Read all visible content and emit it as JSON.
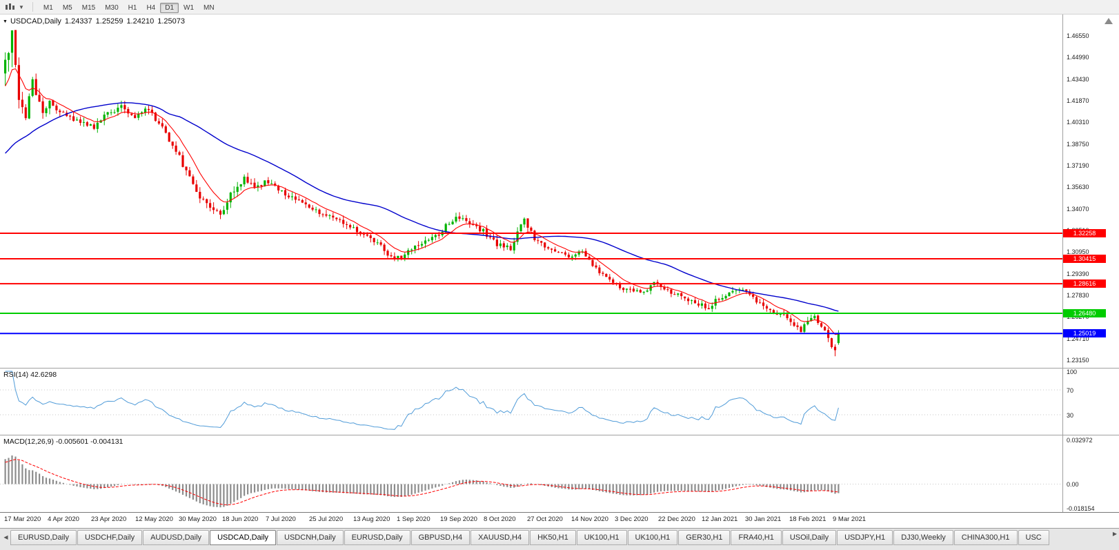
{
  "toolbar": {
    "timeframes": [
      {
        "label": "M1",
        "active": false
      },
      {
        "label": "M5",
        "active": false
      },
      {
        "label": "M15",
        "active": false
      },
      {
        "label": "M30",
        "active": false
      },
      {
        "label": "H1",
        "active": false
      },
      {
        "label": "H4",
        "active": false
      },
      {
        "label": "D1",
        "active": true
      },
      {
        "label": "W1",
        "active": false
      },
      {
        "label": "MN",
        "active": false
      }
    ]
  },
  "chart": {
    "marker": "▼",
    "symbol_label": "USDCAD,Daily",
    "ohlc": {
      "open": "1.24337",
      "high": "1.25259",
      "low": "1.24210",
      "close": "1.25073"
    }
  },
  "rsi": {
    "label": "RSI(14)",
    "value": "42.6298",
    "levels": [
      "100",
      "70",
      "30"
    ]
  },
  "macd": {
    "label": "MACD(12,26,9)",
    "value_macd": "-0.005601",
    "value_signal": "-0.004131",
    "axis": [
      "0.032972",
      "0.00",
      "-0.018154"
    ]
  },
  "tabs": {
    "scroll_left": "◀",
    "scroll_right": "▶",
    "items": [
      {
        "label": "EURUSD,Daily",
        "active": false
      },
      {
        "label": "USDCHF,Daily",
        "active": false
      },
      {
        "label": "AUDUSD,Daily",
        "active": false
      },
      {
        "label": "USDCAD,Daily",
        "active": true
      },
      {
        "label": "USDCNH,Daily",
        "active": false
      },
      {
        "label": "EURUSD,Daily",
        "active": false
      },
      {
        "label": "GBPUSD,H4",
        "active": false
      },
      {
        "label": "XAUUSD,H4",
        "active": false
      },
      {
        "label": "HK50,H1",
        "active": false
      },
      {
        "label": "UK100,H1",
        "active": false
      },
      {
        "label": "UK100,H1",
        "active": false
      },
      {
        "label": "GER30,H1",
        "active": false
      },
      {
        "label": "FRA40,H1",
        "active": false
      },
      {
        "label": "USOil,Daily",
        "active": false
      },
      {
        "label": "USDJPY,H1",
        "active": false
      },
      {
        "label": "DJ30,Weekly",
        "active": false
      },
      {
        "label": "CHINA300,H1",
        "active": false
      },
      {
        "label": "USC",
        "active": false
      }
    ]
  },
  "colors": {
    "up": "#00b300",
    "down": "#e80000",
    "ma_fast": "#ff0000",
    "ma_slow": "#0000cc",
    "rsi_line": "#4f9bd8",
    "macd_hist": "#8c8c8c",
    "macd_signal": "#ff0000",
    "grid_dotted": "#c6c6c6"
  },
  "chart_data": {
    "type": "candlestick",
    "symbol": "USDCAD",
    "timeframe": "Daily",
    "bars": 245,
    "y_axis_ticks": [
      "1.46550",
      "1.44990",
      "1.43430",
      "1.41870",
      "1.40310",
      "1.38750",
      "1.37190",
      "1.35630",
      "1.34070",
      "1.32510",
      "1.30950",
      "1.29390",
      "1.27830",
      "1.26270",
      "1.24710",
      "1.23150"
    ],
    "x_axis_dates": [
      "17 Mar 2020",
      "4 Apr 2020",
      "23 Apr 2020",
      "12 May 2020",
      "30 May 2020",
      "18 Jun 2020",
      "7 Jul 2020",
      "25 Jul 2020",
      "13 Aug 2020",
      "1 Sep 2020",
      "19 Sep 2020",
      "8 Oct 2020",
      "27 Oct 2020",
      "14 Nov 2020",
      "3 Dec 2020",
      "22 Dec 2020",
      "12 Jan 2021",
      "30 Jan 2021",
      "18 Feb 2021",
      "9 Mar 2021"
    ],
    "horizontal_lines": [
      {
        "price": 1.32258,
        "label": "1.32258",
        "color": "#ff0000"
      },
      {
        "price": 1.30415,
        "label": "1.30415",
        "color": "#ff0000"
      },
      {
        "price": 1.28616,
        "label": "1.28616",
        "color": "#ff0000"
      },
      {
        "price": 1.2648,
        "label": "1.26480",
        "color": "#00cc00"
      },
      {
        "price": 1.25019,
        "label": "1.25019",
        "color": "#0000ff"
      }
    ],
    "last_candle": {
      "open": 1.24337,
      "high": 1.25259,
      "low": 1.2421,
      "close": 1.25073
    },
    "price_range_estimate": {
      "high": 1.4655,
      "low": 1.233
    },
    "price_anchors": [
      [
        0,
        1.442
      ],
      [
        2,
        1.463
      ],
      [
        4,
        1.419
      ],
      [
        6,
        1.406
      ],
      [
        8,
        1.433
      ],
      [
        11,
        1.409
      ],
      [
        13,
        1.417
      ],
      [
        17,
        1.408
      ],
      [
        22,
        1.402
      ],
      [
        26,
        1.3985
      ],
      [
        30,
        1.409
      ],
      [
        34,
        1.414
      ],
      [
        38,
        1.407
      ],
      [
        42,
        1.412
      ],
      [
        46,
        1.398
      ],
      [
        51,
        1.378
      ],
      [
        55,
        1.356
      ],
      [
        59,
        1.343
      ],
      [
        63,
        1.336
      ],
      [
        66,
        1.352
      ],
      [
        70,
        1.362
      ],
      [
        73,
        1.356
      ],
      [
        76,
        1.359
      ],
      [
        80,
        1.355
      ],
      [
        84,
        1.348
      ],
      [
        89,
        1.341
      ],
      [
        93,
        1.337
      ],
      [
        97,
        1.333
      ],
      [
        102,
        1.326
      ],
      [
        106,
        1.321
      ],
      [
        110,
        1.313
      ],
      [
        112,
        1.306
      ],
      [
        114,
        1.303
      ],
      [
        118,
        1.309
      ],
      [
        122,
        1.316
      ],
      [
        127,
        1.321
      ],
      [
        130,
        1.331
      ],
      [
        133,
        1.334
      ],
      [
        136,
        1.33
      ],
      [
        140,
        1.324
      ],
      [
        144,
        1.315
      ],
      [
        148,
        1.312
      ],
      [
        151,
        1.329
      ],
      [
        152,
        1.332
      ],
      [
        155,
        1.319
      ],
      [
        158,
        1.312
      ],
      [
        162,
        1.308
      ],
      [
        165,
        1.306
      ],
      [
        169,
        1.309
      ],
      [
        172,
        1.299
      ],
      [
        175,
        1.293
      ],
      [
        178,
        1.287
      ],
      [
        181,
        1.283
      ],
      [
        184,
        1.281
      ],
      [
        187,
        1.279
      ],
      [
        190,
        1.287
      ],
      [
        193,
        1.282
      ],
      [
        197,
        1.278
      ],
      [
        200,
        1.274
      ],
      [
        203,
        1.272
      ],
      [
        206,
        1.269
      ],
      [
        209,
        1.276
      ],
      [
        212,
        1.279
      ],
      [
        216,
        1.281
      ],
      [
        219,
        1.276
      ],
      [
        222,
        1.27
      ],
      [
        225,
        1.265
      ],
      [
        228,
        1.263
      ],
      [
        231,
        1.256
      ],
      [
        233,
        1.252
      ],
      [
        235,
        1.26
      ],
      [
        237,
        1.262
      ],
      [
        239,
        1.256
      ],
      [
        241,
        1.2465
      ],
      [
        242,
        1.242
      ],
      [
        243,
        1.239
      ],
      [
        244,
        1.25073
      ]
    ],
    "indicators": {
      "rsi": {
        "period": 14,
        "current": 42.6298
      },
      "macd": {
        "fast": 12,
        "slow": 26,
        "signal": 9,
        "current_macd": -0.005601,
        "current_signal": -0.004131
      },
      "moving_averages": [
        {
          "type": "fast",
          "color": "#ff0000"
        },
        {
          "type": "slow",
          "color": "#0000cc"
        }
      ]
    }
  }
}
